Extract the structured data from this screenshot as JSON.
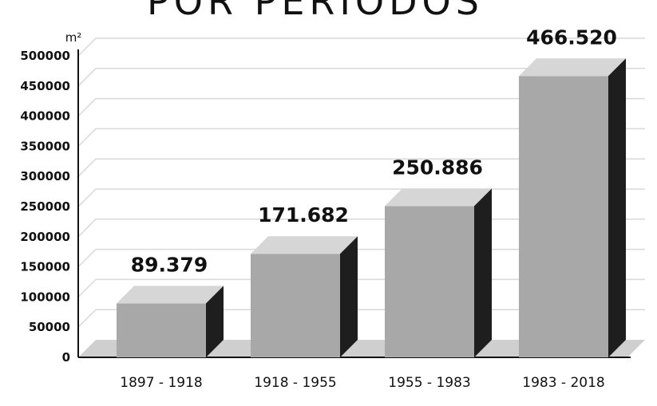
{
  "chart_data": {
    "type": "bar",
    "title": "POR PERIODOS",
    "ylabel": "m²",
    "categories": [
      "1897 - 1918",
      "1918 - 1955",
      "1955 - 1983",
      "1983 - 2018"
    ],
    "values": [
      89379,
      171682,
      250886,
      466520
    ],
    "data_labels": [
      "89.379",
      "171.682",
      "250.886",
      "466.520"
    ],
    "ylim": [
      0,
      500000
    ],
    "yticks": [
      0,
      50000,
      100000,
      150000,
      200000,
      250000,
      300000,
      350000,
      400000,
      450000,
      500000
    ],
    "ytick_labels": [
      "0",
      "50000",
      "100000",
      "150000",
      "200000",
      "250000",
      "300000",
      "350000",
      "400000",
      "450000",
      "500000"
    ],
    "grid": true,
    "legend": "none",
    "style": "3d",
    "colors": {
      "bar_front": "#a8a8a8",
      "bar_top": "#d6d6d6",
      "bar_side": "#1e1e1e",
      "floor": "#cfcfcf",
      "grid": "#d9d9d9"
    }
  }
}
